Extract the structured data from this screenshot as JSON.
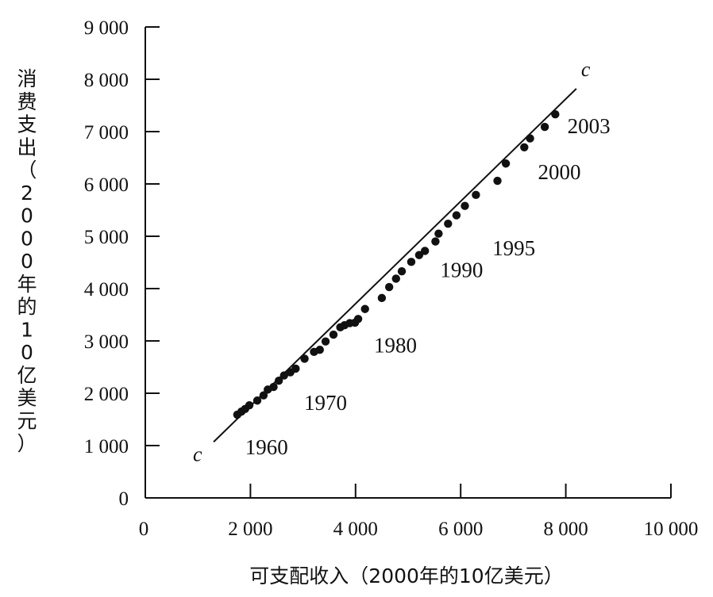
{
  "chart_data": {
    "type": "scatter",
    "title": "",
    "xlabel": "可支配收入（2000年的10亿美元）",
    "ylabel": "消费支出（2000年的10亿美元）",
    "xlim": [
      0,
      10000
    ],
    "ylim": [
      0,
      9000
    ],
    "x_ticks": [
      0,
      2000,
      4000,
      6000,
      8000,
      10000
    ],
    "x_tick_labels": [
      "0",
      "2 000",
      "4 000",
      "6 000",
      "8 000",
      "10 000"
    ],
    "y_ticks": [
      0,
      1000,
      2000,
      3000,
      4000,
      5000,
      6000,
      7000,
      8000,
      9000
    ],
    "y_tick_labels": [
      "0",
      "1 000",
      "2 000",
      "3 000",
      "4 000",
      "5 000",
      "6 000",
      "7 000",
      "8 000",
      "9 000"
    ],
    "grid": false,
    "line": {
      "label": "c",
      "points": [
        [
          1300,
          1070
        ],
        [
          8200,
          7820
        ]
      ]
    },
    "points": [
      [
        1750,
        1590
      ],
      [
        1830,
        1650
      ],
      [
        1900,
        1700
      ],
      [
        1980,
        1770
      ],
      [
        2130,
        1860
      ],
      [
        2250,
        1960
      ],
      [
        2330,
        2070
      ],
      [
        2440,
        2120
      ],
      [
        2540,
        2240
      ],
      [
        2640,
        2340
      ],
      [
        2760,
        2400
      ],
      [
        2860,
        2470
      ],
      [
        3030,
        2660
      ],
      [
        3210,
        2790
      ],
      [
        3320,
        2830
      ],
      [
        3430,
        2990
      ],
      [
        3580,
        3120
      ],
      [
        3710,
        3260
      ],
      [
        3790,
        3300
      ],
      [
        3890,
        3340
      ],
      [
        3990,
        3350
      ],
      [
        4050,
        3420
      ],
      [
        4180,
        3610
      ],
      [
        4500,
        3820
      ],
      [
        4640,
        4030
      ],
      [
        4770,
        4190
      ],
      [
        4880,
        4330
      ],
      [
        5060,
        4510
      ],
      [
        5210,
        4640
      ],
      [
        5320,
        4720
      ],
      [
        5520,
        4900
      ],
      [
        5580,
        5050
      ],
      [
        5760,
        5240
      ],
      [
        5920,
        5400
      ],
      [
        6080,
        5580
      ],
      [
        6290,
        5790
      ],
      [
        6700,
        6060
      ],
      [
        6860,
        6390
      ],
      [
        7210,
        6700
      ],
      [
        7320,
        6870
      ],
      [
        7600,
        7090
      ],
      [
        7800,
        7330
      ]
    ],
    "annotations": [
      {
        "text": "1960",
        "x": 1960,
        "y": 1650
      },
      {
        "text": "1970",
        "x": 2960,
        "y": 2470
      },
      {
        "text": "1980",
        "x": 4200,
        "y": 3420
      },
      {
        "text": "1990",
        "x": 5550,
        "y": 4900
      },
      {
        "text": "1995",
        "x": 6270,
        "y": 5240
      },
      {
        "text": "2000",
        "x": 7380,
        "y": 6700
      },
      {
        "text": "2003",
        "x": 7820,
        "y": 7330
      }
    ]
  }
}
